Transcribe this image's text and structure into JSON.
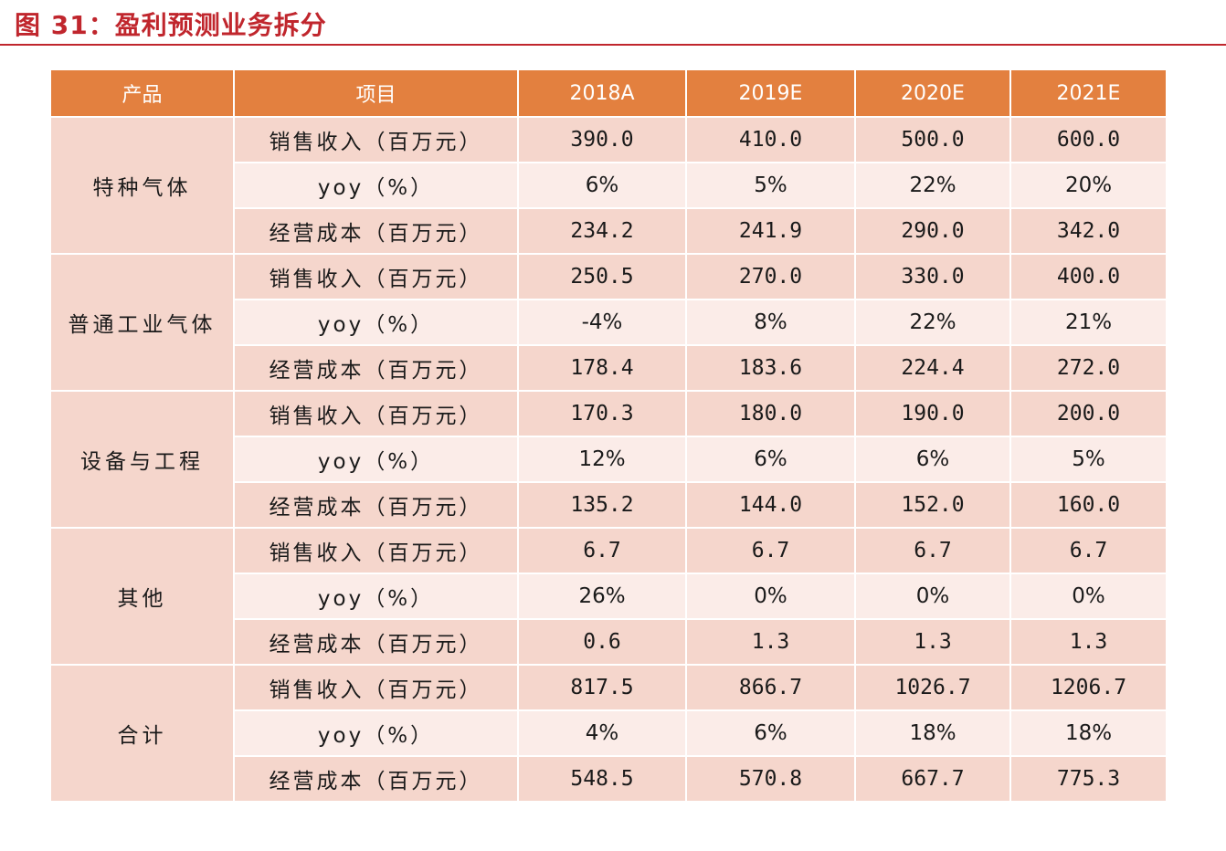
{
  "page": {
    "title": "图 31：盈利预测业务拆分"
  },
  "table": {
    "headers": [
      "产品",
      "项目",
      "2018A",
      "2019E",
      "2020E",
      "2021E"
    ],
    "groups": [
      {
        "product": "特种气体",
        "rows": [
          {
            "item": "销售收入（百万元）",
            "values": [
              "390.0",
              "410.0",
              "500.0",
              "600.0"
            ]
          },
          {
            "item": "yoy（%）",
            "values": [
              "6%",
              "5%",
              "22%",
              "20%"
            ]
          },
          {
            "item": "经营成本（百万元）",
            "values": [
              "234.2",
              "241.9",
              "290.0",
              "342.0"
            ]
          }
        ]
      },
      {
        "product": "普通工业气体",
        "rows": [
          {
            "item": "销售收入（百万元）",
            "values": [
              "250.5",
              "270.0",
              "330.0",
              "400.0"
            ]
          },
          {
            "item": "yoy（%）",
            "values": [
              "-4%",
              "8%",
              "22%",
              "21%"
            ]
          },
          {
            "item": "经营成本（百万元）",
            "values": [
              "178.4",
              "183.6",
              "224.4",
              "272.0"
            ]
          }
        ]
      },
      {
        "product": "设备与工程",
        "rows": [
          {
            "item": "销售收入（百万元）",
            "values": [
              "170.3",
              "180.0",
              "190.0",
              "200.0"
            ]
          },
          {
            "item": "yoy（%）",
            "values": [
              "12%",
              "6%",
              "6%",
              "5%"
            ]
          },
          {
            "item": "经营成本（百万元）",
            "values": [
              "135.2",
              "144.0",
              "152.0",
              "160.0"
            ]
          }
        ]
      },
      {
        "product": "其他",
        "rows": [
          {
            "item": "销售收入（百万元）",
            "values": [
              "6.7",
              "6.7",
              "6.7",
              "6.7"
            ]
          },
          {
            "item": "yoy（%）",
            "values": [
              "26%",
              "0%",
              "0%",
              "0%"
            ]
          },
          {
            "item": "经营成本（百万元）",
            "values": [
              "0.6",
              "1.3",
              "1.3",
              "1.3"
            ]
          }
        ]
      },
      {
        "product": "合计",
        "rows": [
          {
            "item": "销售收入（百万元）",
            "values": [
              "817.5",
              "866.7",
              "1026.7",
              "1206.7"
            ]
          },
          {
            "item": "yoy（%）",
            "values": [
              "4%",
              "6%",
              "18%",
              "18%"
            ]
          },
          {
            "item": "经营成本（百万元）",
            "values": [
              "548.5",
              "570.8",
              "667.7",
              "775.3"
            ]
          }
        ]
      }
    ]
  },
  "colors": {
    "header_bg": "#e3803f",
    "title_red": "#c0262d",
    "row_dark": "#f5d6cc",
    "row_light": "#fbece8"
  }
}
